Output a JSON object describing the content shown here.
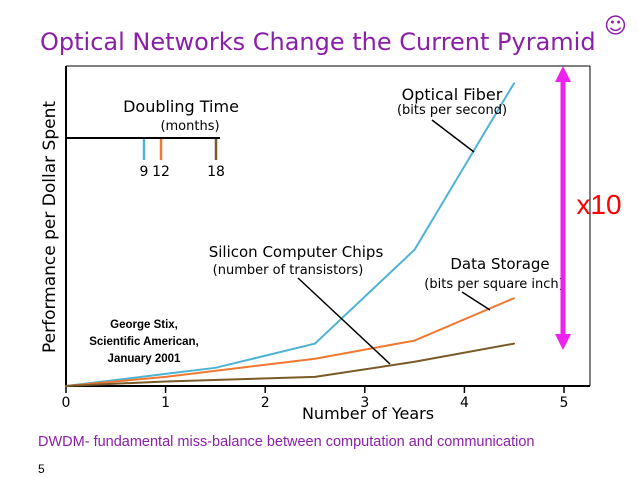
{
  "slide": {
    "title": "Optical Networks Change the Current Pyramid",
    "smiley": "☺",
    "footer": "DWDM- fundamental miss-balance between computation and communication",
    "page_number": "5",
    "title_color": "#8b1fa8"
  },
  "chart_data": {
    "type": "line",
    "xlabel": "Number of Years",
    "ylabel": "Performance per Dollar Spent",
    "xlim": [
      0,
      5
    ],
    "ticks": [
      "0",
      "1",
      "2",
      "3",
      "4",
      "5"
    ],
    "grid": false,
    "series": [
      {
        "name": "Optical Fiber",
        "sub": "(bits per second)",
        "color": "#4fb3d6",
        "x": [
          0,
          1,
          1.5,
          2.5,
          3.5,
          4.5
        ],
        "y": [
          0,
          0.04,
          0.06,
          0.14,
          0.45,
          1.0
        ]
      },
      {
        "name": "Data Storage",
        "sub": "(bits per square inch)",
        "color": "#f07830",
        "x": [
          0,
          1,
          2.5,
          3.5,
          4.5
        ],
        "y": [
          0,
          0.03,
          0.09,
          0.15,
          0.29
        ]
      },
      {
        "name": "Silicon Computer Chips",
        "sub": "(number of transistors)",
        "color": "#7a5a28",
        "x": [
          0,
          1,
          2.5,
          3.5,
          4.5
        ],
        "y": [
          0,
          0.015,
          0.03,
          0.08,
          0.14
        ]
      }
    ],
    "doubling_time": {
      "title": "Doubling Time",
      "sub": "(months)",
      "labels": [
        "9",
        "12",
        "18"
      ],
      "colors": [
        "#4fb3d6",
        "#f07830",
        "#7a5a28"
      ]
    },
    "annotations": {
      "multiplier": "x10",
      "source_lines": [
        "George Stix,",
        "Scientific American,",
        "January 2001"
      ]
    },
    "colors": {
      "arrow": "#ee22ee",
      "multiplier": "#ff0000",
      "axis": "#000000"
    }
  }
}
